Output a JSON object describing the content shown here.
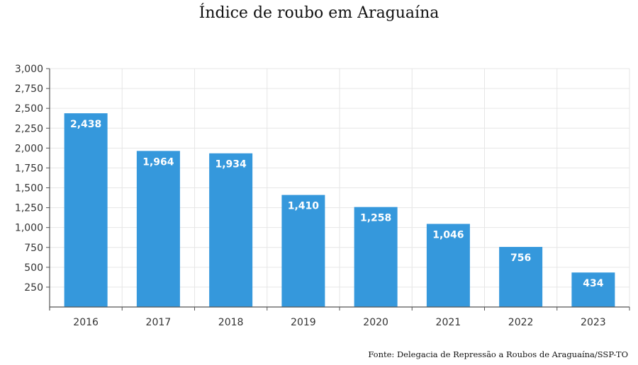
{
  "title": "Índice de roubo em Araguaína",
  "source": "Fonte: Delegacia de Repressão a Roubos de Araguaína/SSP-TO",
  "colors": {
    "bar": "#3598dc",
    "grid": "#e6e6e6",
    "axis": "#555555"
  },
  "chart_data": {
    "type": "bar",
    "title": "Índice de roubo em Araguaína",
    "xlabel": "",
    "ylabel": "",
    "categories": [
      "2016",
      "2017",
      "2018",
      "2019",
      "2020",
      "2021",
      "2022",
      "2023"
    ],
    "values": [
      2438,
      1964,
      1934,
      1410,
      1258,
      1046,
      756,
      434
    ],
    "value_labels": [
      "2,438",
      "1,964",
      "1,934",
      "1,410",
      "1,258",
      "1,046",
      "756",
      "434"
    ],
    "ylim": [
      0,
      3000
    ],
    "yticks": [
      250,
      500,
      750,
      1000,
      1250,
      1500,
      1750,
      2000,
      2250,
      2500,
      2750,
      3000
    ],
    "ytick_labels": [
      "250",
      "500",
      "750",
      "1,000",
      "1,250",
      "1,500",
      "1,750",
      "2,000",
      "2,250",
      "2,500",
      "2,750",
      "3,000"
    ],
    "grid": true,
    "legend": "none"
  }
}
